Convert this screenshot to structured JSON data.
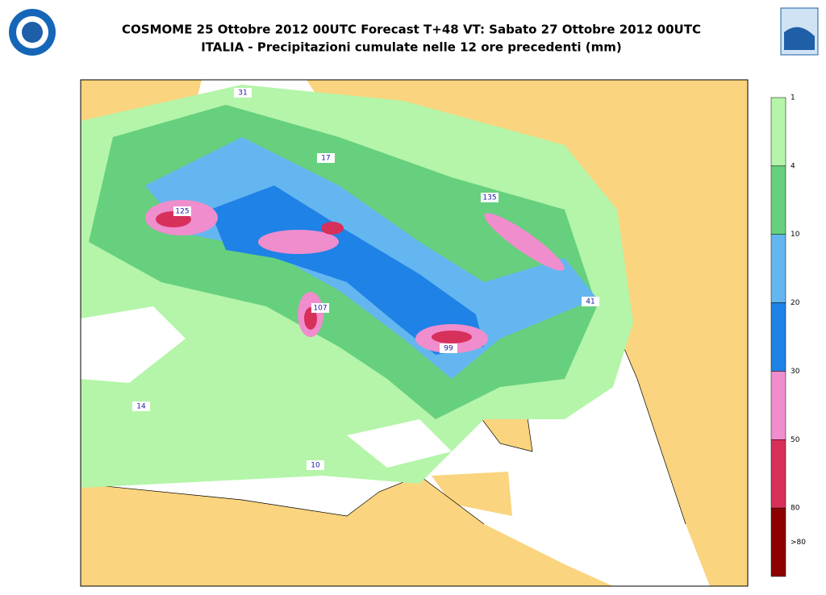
{
  "header": {
    "title": "COSMOME 25 Ottobre 2012 00UTC Forecast T+48 VT: Sabato 27 Ottobre 2012 00UTC",
    "subtitle": "ITALIA - Precipitazioni cumulate nelle 12 ore precedenti (mm)"
  },
  "colorbar": {
    "labels": [
      "1",
      "4",
      "10",
      "20",
      "30",
      "50",
      "80",
      ">80"
    ],
    "colors": [
      "#b4f5a9",
      "#66d07e",
      "#64b6f0",
      "#1f82e6",
      "#f08dcd",
      "#d7305b",
      "#8c0000"
    ]
  },
  "map_labels": [
    "31",
    "17",
    "125",
    "135",
    "107",
    "41",
    "99",
    "14",
    "10"
  ]
}
